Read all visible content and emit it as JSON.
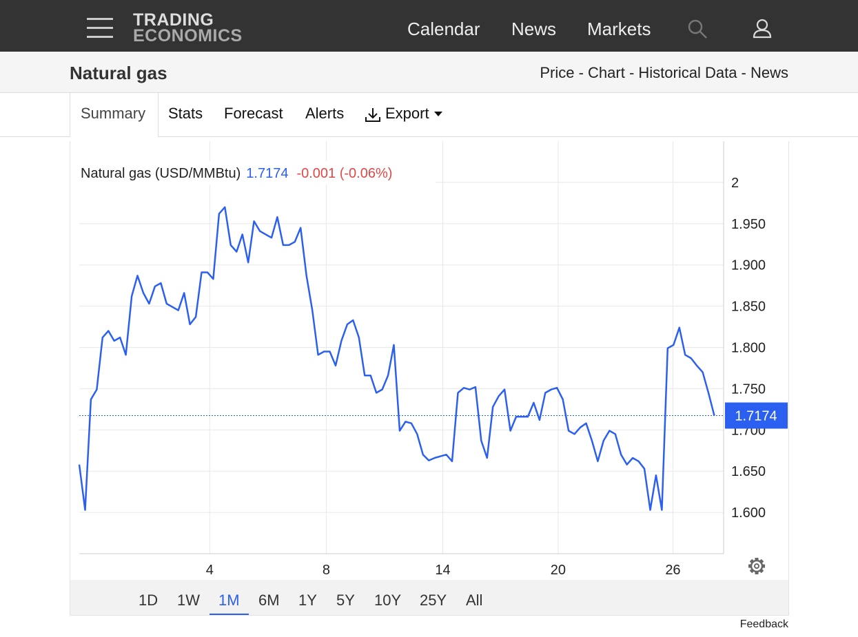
{
  "header": {
    "logo_top": "TRADING",
    "logo_bottom": "ECONOMICS",
    "nav": [
      "Calendar",
      "News",
      "Markets"
    ]
  },
  "subheader": {
    "title": "Natural gas",
    "links": "Price - Chart - Historical Data - News"
  },
  "tabs": [
    "Summary",
    "Stats",
    "Forecast",
    "Alerts",
    "Export"
  ],
  "ranges": [
    "1D",
    "1W",
    "1M",
    "6M",
    "1Y",
    "5Y",
    "10Y",
    "25Y",
    "All"
  ],
  "active_range": "1M",
  "feedback": "Feedback",
  "chart_data": {
    "type": "line",
    "title": "Natural gas (USD/MMBtu)",
    "change_label": "-0.001 (-0.06%)",
    "series": [
      {
        "name": "Natural gas",
        "color": "#2b5ff0",
        "values": [
          1.658,
          1.603,
          1.737,
          1.749,
          1.812,
          1.82,
          1.808,
          1.812,
          1.791,
          1.862,
          1.887,
          1.866,
          1.853,
          1.874,
          1.878,
          1.853,
          1.849,
          1.845,
          1.866,
          1.828,
          1.837,
          1.891,
          1.891,
          1.883,
          1.962,
          1.97,
          1.924,
          1.916,
          1.937,
          1.903,
          1.953,
          1.941,
          1.937,
          1.933,
          1.958,
          1.924,
          1.924,
          1.928,
          1.945,
          1.887,
          1.845,
          1.791,
          1.795,
          1.795,
          1.778,
          1.808,
          1.828,
          1.833,
          1.812,
          1.766,
          1.766,
          1.745,
          1.749,
          1.766,
          1.803,
          1.699,
          1.71,
          1.708,
          1.695,
          1.67,
          1.663,
          1.666,
          1.668,
          1.67,
          1.662,
          1.745,
          1.751,
          1.749,
          1.752,
          1.687,
          1.666,
          1.728,
          1.741,
          1.749,
          1.699,
          1.716,
          1.716,
          1.716,
          1.733,
          1.712,
          1.745,
          1.749,
          1.751,
          1.737,
          1.699,
          1.695,
          1.703,
          1.708,
          1.687,
          1.662,
          1.687,
          1.699,
          1.695,
          1.67,
          1.658,
          1.666,
          1.662,
          1.653,
          1.603,
          1.645,
          1.603,
          1.799,
          1.803,
          1.824,
          1.791,
          1.787,
          1.778,
          1.77,
          1.745,
          1.7174
        ]
      }
    ],
    "xlim": [
      0,
      110.6
    ],
    "xticks": [
      {
        "value": 22.4,
        "label": "4"
      },
      {
        "value": 42.4,
        "label": "8"
      },
      {
        "value": 62.4,
        "label": "14"
      },
      {
        "value": 82.2,
        "label": "20"
      },
      {
        "value": 101.9,
        "label": "26"
      }
    ],
    "ylim": [
      1.55,
      2.05
    ],
    "yticks": [
      {
        "value": 1.6,
        "label": "1.600"
      },
      {
        "value": 1.65,
        "label": "1.650"
      },
      {
        "value": 1.7,
        "label": "1.700"
      },
      {
        "value": 1.75,
        "label": "1.750"
      },
      {
        "value": 1.8,
        "label": "1.800"
      },
      {
        "value": 1.85,
        "label": "1.850"
      },
      {
        "value": 1.9,
        "label": "1.900"
      },
      {
        "value": 1.95,
        "label": "1.950"
      },
      2
    ],
    "grid": true
  }
}
